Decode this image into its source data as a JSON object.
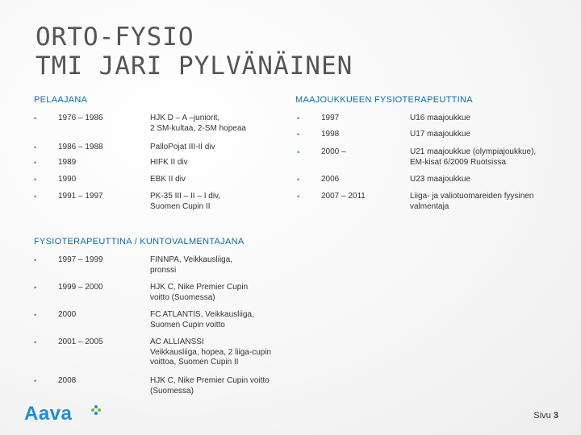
{
  "title": {
    "line1": "ORTO-FYSIO",
    "line2": "TMI JARI PYLVÄNÄINEN"
  },
  "pelaajana": {
    "heading": "PELAAJANA",
    "items": [
      {
        "years": "1976 – 1986",
        "desc": "HJK D – A –juniorit,\n2 SM-kultaa, 2-SM hopeaa"
      },
      {
        "years": "1986 – 1988",
        "desc": "PalloPojat III-II div"
      },
      {
        "years": "1989",
        "desc": "HIFK II div"
      },
      {
        "years": "1990",
        "desc": "EBK II div"
      },
      {
        "years": "1991 – 1997",
        "desc": "PK-35 III – II – I div,\nSuomen Cupin II"
      }
    ]
  },
  "maajoukkueet": {
    "heading": "MAAJOUKKUEEN FYSIOTERAPEUTTINA",
    "items": [
      {
        "years": "1997",
        "desc": "U16 maajoukkue"
      },
      {
        "years": "1998",
        "desc": "U17 maajoukkue"
      },
      {
        "years": "2000 –",
        "desc": "U21 maajoukkue (olympiajoukkue),\nEM-kisat 6/2009 Ruotsissa"
      },
      {
        "years": "2006",
        "desc": "U23 maajoukkue"
      },
      {
        "years": "2007 – 2011",
        "desc": "Liiga- ja valiotuomareiden fyysinen\nvalmentaja"
      }
    ]
  },
  "fysioterapeuttina": {
    "heading": "FYSIOTERAPEUTTINA / KUNTOVALMENTAJANA",
    "items": [
      {
        "years": "1997 – 1999",
        "desc": "FINNPA, Veikkausliiga,\npronssi"
      },
      {
        "years": "1999 – 2000",
        "desc": "HJK C, Nike Premier Cupin\nvoitto (Suomessa)"
      },
      {
        "years": "2000",
        "desc": "FC ATLANTIS, Veikkausliiga,\nSuomen Cupin voitto"
      },
      {
        "years": "2001 – 2005",
        "desc": "AC ALLIANSSI\nVeikkausliiga, hopea, 2 liiga-cupin\nvoittoa, Suomen Cupin II"
      },
      {
        "years": "2008",
        "desc": "HJK C, Nike Premier Cupin voitto\n(Suomessa)"
      }
    ]
  },
  "footer": {
    "logo_text": "Aava",
    "page_label": "Sivu",
    "page_number": "3",
    "brand_color": "#1f8dd6",
    "accent_color": "#6bbf3a"
  },
  "bullet_char": "•"
}
